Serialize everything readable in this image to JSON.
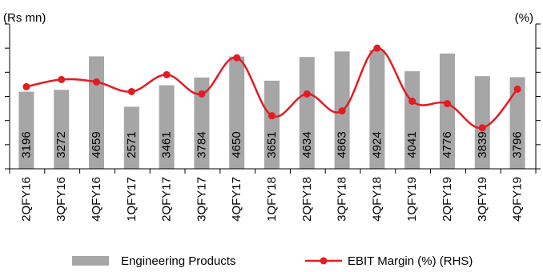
{
  "chart_data": {
    "type": "bar+line",
    "left_axis_label": "(Rs mn)",
    "right_axis_label": "(%)",
    "categories": [
      "2QFY16",
      "3QFY16",
      "4QFY16",
      "1QFY17",
      "2QFY17",
      "3QFY17",
      "4QFY17",
      "1QFY18",
      "2QFY18",
      "3QFY18",
      "4QFY18",
      "1QFY19",
      "2QFY19",
      "3QFY19",
      "4QFY19"
    ],
    "series": [
      {
        "name": "Engineering Products",
        "type": "bar",
        "axis": "left",
        "color": "#a6a6a6",
        "values": [
          3196,
          3272,
          4659,
          2571,
          3461,
          3784,
          4650,
          3651,
          4634,
          4863,
          4924,
          4041,
          4776,
          3839,
          3796
        ]
      },
      {
        "name": "EBIT Margin (%) (RHS)",
        "type": "line",
        "axis": "right",
        "color": "#e31b23",
        "values": [
          3.4,
          3.7,
          3.6,
          3.2,
          3.9,
          3.1,
          4.6,
          2.2,
          3.1,
          2.4,
          5.0,
          2.8,
          2.7,
          1.7,
          3.3
        ]
      }
    ],
    "left_ylim": [
      0,
      6000
    ],
    "right_ylim": [
      0,
      6
    ],
    "gridlines": false,
    "legend_position": "bottom"
  }
}
